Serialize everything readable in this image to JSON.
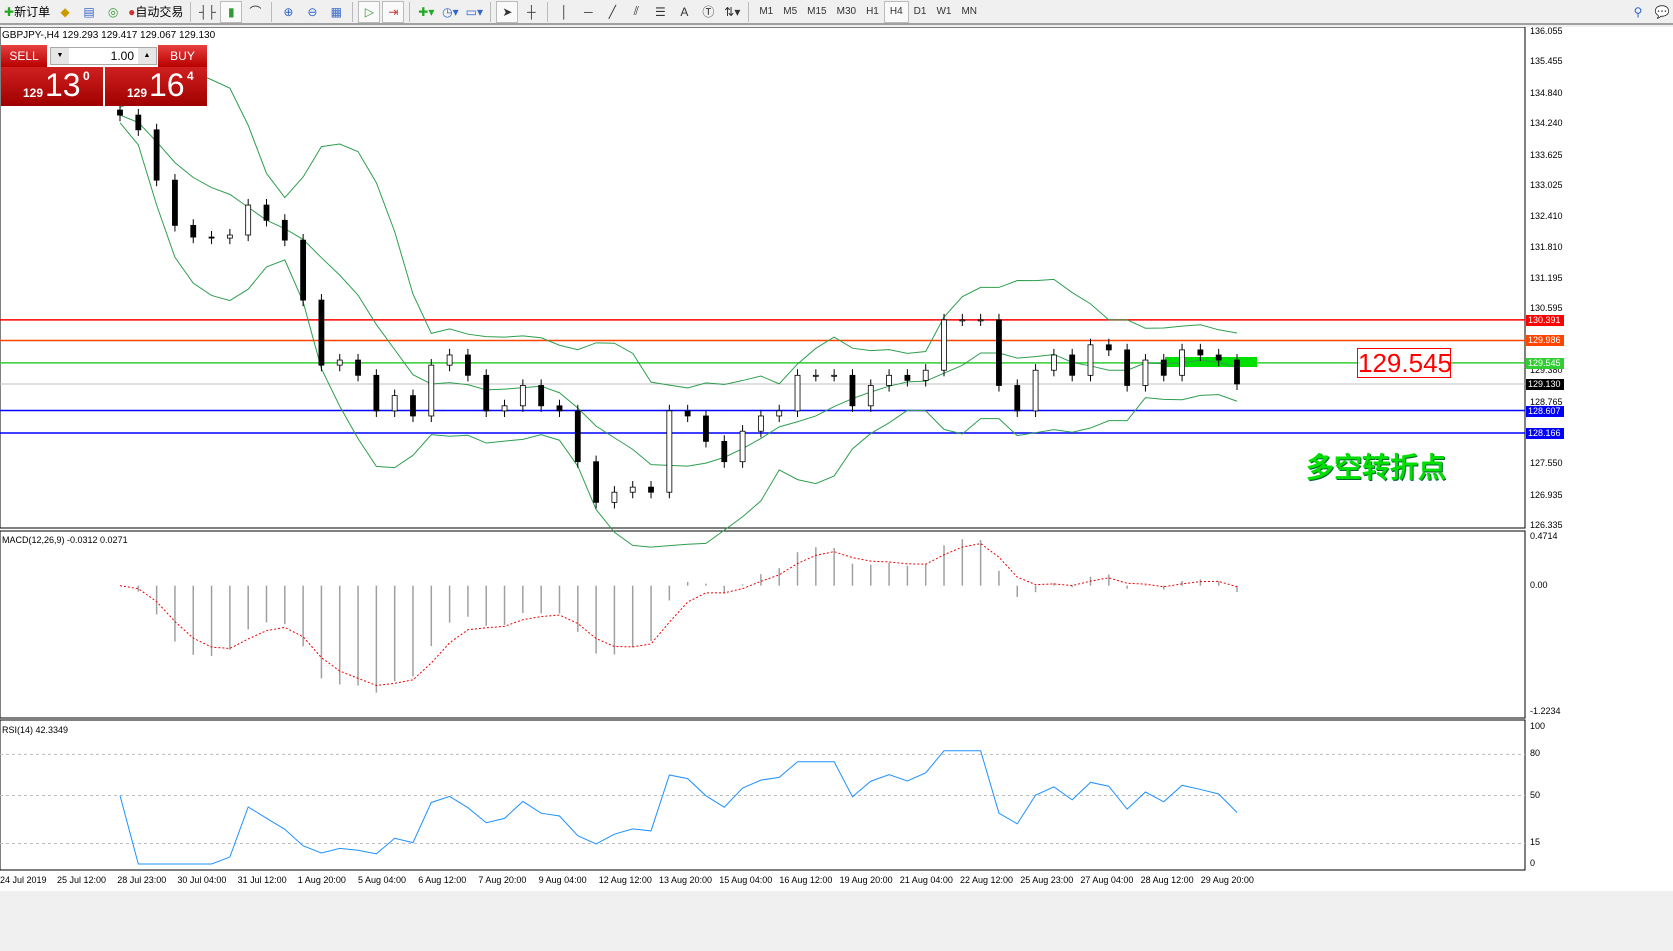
{
  "toolbar": {
    "new_order": "新订单",
    "auto_trading": "自动交易",
    "icons": [
      "new-order-icon",
      "market-watch-icon",
      "navigator-icon",
      "signals-icon",
      "auto-trading-icon",
      "bar-chart-icon",
      "candlestick-icon",
      "line-chart-icon",
      "zoom-in-icon",
      "zoom-out-icon",
      "tile-windows-icon",
      "chart-shift-icon",
      "autoscroll-icon",
      "indicators-icon",
      "periods-icon",
      "templates-icon",
      "cursor-icon",
      "crosshair-icon",
      "vertical-line-icon",
      "horizontal-line-icon",
      "trendline-icon",
      "equidistant-channel-icon",
      "fibonacci-icon",
      "text-icon",
      "text-label-icon",
      "arrows-icon"
    ],
    "timeframes": [
      "M1",
      "M5",
      "M15",
      "M30",
      "H1",
      "H4",
      "D1",
      "W1",
      "MN"
    ],
    "active_timeframe": "H4"
  },
  "symbol_info": "GBPJPY-,H4  129.293 129.417 129.067 129.130",
  "trade_panel": {
    "sell": "SELL",
    "buy": "BUY",
    "lot": "1.00",
    "sell_price": {
      "small": "129",
      "big": "13",
      "pip": "0"
    },
    "buy_price": {
      "small": "129",
      "big": "16",
      "pip": "4"
    }
  },
  "price_axis": [
    "136.055",
    "135.455",
    "134.840",
    "134.240",
    "133.625",
    "133.025",
    "132.410",
    "131.810",
    "131.195",
    "130.595",
    "129.380",
    "128.765",
    "127.550",
    "126.935",
    "126.335"
  ],
  "levels": [
    {
      "price": "130.391",
      "color": "#ff0000"
    },
    {
      "price": "129.986",
      "color": "#ff4500"
    },
    {
      "price": "129.545",
      "color": "#32cd32"
    },
    {
      "price": "129.130",
      "color": "#000000"
    },
    {
      "price": "128.607",
      "color": "#0000ff"
    },
    {
      "price": "128.166",
      "color": "#0000ff"
    }
  ],
  "annotation_price": "129.545",
  "annotation_text": "多空转折点",
  "chart_data": {
    "type": "candlestick",
    "symbol": "GBPJPY",
    "timeframe": "H4",
    "ylim": [
      126.335,
      136.055
    ],
    "close": [
      134.42,
      134.13,
      133.14,
      132.25,
      132.02,
      132.0,
      132.06,
      132.65,
      132.35,
      131.96,
      130.78,
      129.5,
      129.6,
      129.3,
      128.6,
      128.9,
      128.5,
      129.5,
      129.7,
      129.3,
      128.6,
      128.7,
      129.1,
      128.7,
      128.6,
      127.6,
      126.8,
      127.0,
      127.1,
      127.0,
      128.6,
      128.5,
      128.0,
      127.6,
      128.2,
      128.5,
      128.6,
      129.3,
      129.3,
      129.3,
      128.7,
      129.1,
      129.3,
      129.2,
      129.4,
      130.39,
      130.39,
      130.39,
      129.1,
      128.6,
      129.4,
      129.7,
      129.3,
      129.9,
      129.8,
      129.1,
      129.6,
      129.3,
      129.8,
      129.7,
      129.6,
      129.13
    ]
  },
  "macd": {
    "label": "MACD(12,26,9) -0.0312 0.0271",
    "axis": [
      "0.4714",
      "0.00",
      "-1.2234"
    ],
    "ylim": [
      -1.2234,
      0.4714
    ]
  },
  "rsi": {
    "label": "RSI(14) 42.3349",
    "axis": [
      "100",
      "80",
      "50",
      "15",
      "0"
    ]
  },
  "time_axis": [
    "24 Jul 2019",
    "25 Jul 12:00",
    "28 Jul 23:00",
    "30 Jul 04:00",
    "31 Jul 12:00",
    "1 Aug 20:00",
    "5 Aug 04:00",
    "6 Aug 12:00",
    "7 Aug 20:00",
    "9 Aug 04:00",
    "12 Aug 12:00",
    "13 Aug 20:00",
    "15 Aug 04:00",
    "16 Aug 12:00",
    "19 Aug 20:00",
    "21 Aug 04:00",
    "22 Aug 12:00",
    "25 Aug 23:00",
    "27 Aug 04:00",
    "28 Aug 12:00",
    "29 Aug 20:00"
  ]
}
